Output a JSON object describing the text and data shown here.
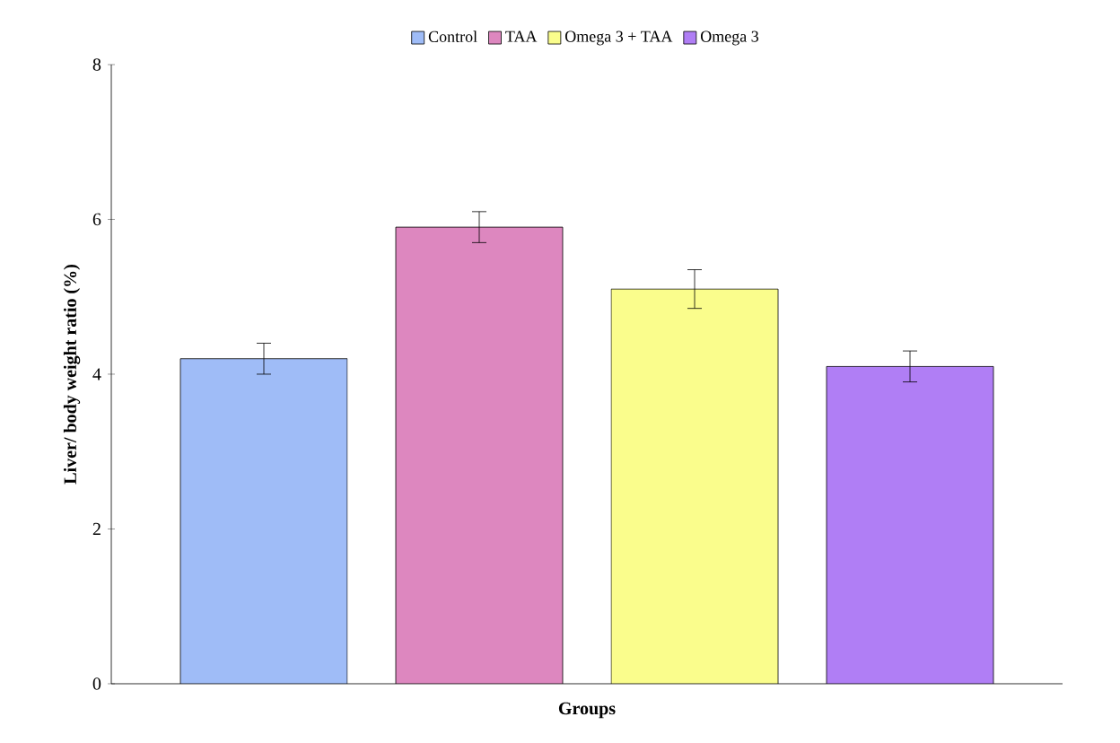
{
  "chart_data": {
    "type": "bar",
    "xlabel": "Groups",
    "ylabel": "Liver/ body weight ratio (%)",
    "categories": [
      null
    ],
    "series": [
      {
        "name": "Control",
        "color": "#9fbcf7",
        "values": [
          4.2
        ],
        "errors": [
          0.2
        ]
      },
      {
        "name": "TAA",
        "color": "#dd87bf",
        "values": [
          5.9
        ],
        "errors": [
          0.2
        ]
      },
      {
        "name": "Omega 3 + TAA",
        "color": "#fafd8c",
        "values": [
          5.1
        ],
        "errors": [
          0.25
        ]
      },
      {
        "name": "Omega 3",
        "color": "#b07ef5",
        "values": [
          4.1
        ],
        "errors": [
          0.2
        ]
      }
    ],
    "ylim": [
      0,
      8
    ],
    "yticks": [
      0,
      2,
      4,
      6,
      8
    ],
    "grid": false,
    "legend": "top"
  }
}
